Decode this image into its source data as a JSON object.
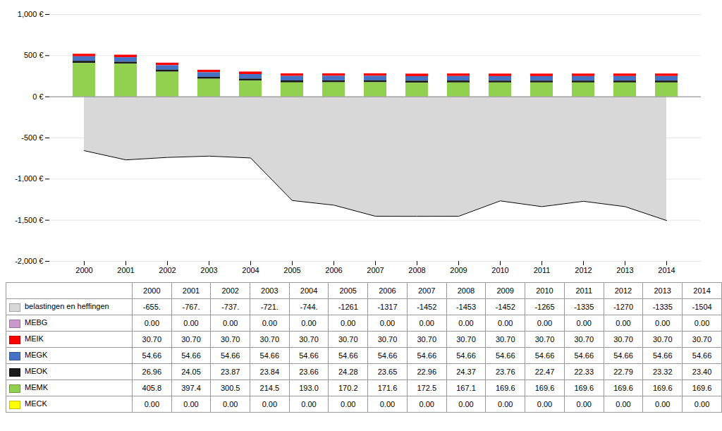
{
  "chart_data": {
    "type": "bar",
    "stacked": true,
    "grid": true,
    "categories": [
      2000,
      2001,
      2002,
      2003,
      2004,
      2005,
      2006,
      2007,
      2008,
      2009,
      2010,
      2011,
      2012,
      2013,
      2014
    ],
    "ylim": [
      -2000,
      1000
    ],
    "yticks": [
      {
        "value": -2000,
        "label": "-2,000 €"
      },
      {
        "value": -1500,
        "label": "-1,500 €"
      },
      {
        "value": -1000,
        "label": "-1,000 €"
      },
      {
        "value": -500,
        "label": "-500 €"
      },
      {
        "value": 0,
        "label": "0 €"
      },
      {
        "value": 500,
        "label": "500 €"
      },
      {
        "value": 1000,
        "label": "1,000 €"
      }
    ],
    "series": [
      {
        "name": "belastingen en heffingen",
        "type": "area",
        "color": "#d8d8d8",
        "values": [
          -655,
          -767,
          -737,
          -721,
          -744,
          -1261,
          -1317,
          -1452,
          -1453,
          -1452,
          -1265,
          -1335,
          -1270,
          -1335,
          -1504
        ],
        "value_labels": [
          "-655.",
          "-767.",
          "-737.",
          "-721.",
          "-744.",
          "-1261",
          "-1317",
          "-1452",
          "-1453",
          "-1452",
          "-1265",
          "-1335",
          "-1270",
          "-1335",
          "-1504"
        ]
      },
      {
        "name": "MEBG",
        "type": "bar",
        "color": "#cc99cc",
        "values": [
          0.0,
          0.0,
          0.0,
          0.0,
          0.0,
          0.0,
          0.0,
          0.0,
          0.0,
          0.0,
          0.0,
          0.0,
          0.0,
          0.0,
          0.0
        ],
        "value_labels": [
          "0.00",
          "0.00",
          "0.00",
          "0.00",
          "0.00",
          "0.00",
          "0.00",
          "0.00",
          "0.00",
          "0.00",
          "0.00",
          "0.00",
          "0.00",
          "0.00",
          "0.00"
        ]
      },
      {
        "name": "MEIK",
        "type": "bar",
        "color": "#ff0000",
        "values": [
          30.7,
          30.7,
          30.7,
          30.7,
          30.7,
          30.7,
          30.7,
          30.7,
          30.7,
          30.7,
          30.7,
          30.7,
          30.7,
          30.7,
          30.7
        ],
        "value_labels": [
          "30.70",
          "30.70",
          "30.70",
          "30.70",
          "30.70",
          "30.70",
          "30.70",
          "30.70",
          "30.70",
          "30.70",
          "30.70",
          "30.70",
          "30.70",
          "30.70",
          "30.70"
        ]
      },
      {
        "name": "MEGK",
        "type": "bar",
        "color": "#4472c4",
        "values": [
          54.66,
          54.66,
          54.66,
          54.66,
          54.66,
          54.66,
          54.66,
          54.66,
          54.66,
          54.66,
          54.66,
          54.66,
          54.66,
          54.66,
          54.66
        ],
        "value_labels": [
          "54.66",
          "54.66",
          "54.66",
          "54.66",
          "54.66",
          "54.66",
          "54.66",
          "54.66",
          "54.66",
          "54.66",
          "54.66",
          "54.66",
          "54.66",
          "54.66",
          "54.66"
        ]
      },
      {
        "name": "MEOK",
        "type": "bar",
        "color": "#1a1a1a",
        "values": [
          26.96,
          24.05,
          23.87,
          23.84,
          23.66,
          24.28,
          23.65,
          22.96,
          24.37,
          23.76,
          22.47,
          22.33,
          22.79,
          23.32,
          23.4
        ],
        "value_labels": [
          "26.96",
          "24.05",
          "23.87",
          "23.84",
          "23.66",
          "24.28",
          "23.65",
          "22.96",
          "24.37",
          "23.76",
          "22.47",
          "22.33",
          "22.79",
          "23.32",
          "23.40"
        ]
      },
      {
        "name": "MEMK",
        "type": "bar",
        "color": "#92d050",
        "values": [
          405.8,
          397.4,
          300.5,
          214.5,
          193.0,
          170.2,
          171.6,
          172.5,
          167.1,
          169.6,
          169.6,
          169.6,
          169.6,
          169.6,
          169.6
        ],
        "value_labels": [
          "405.8",
          "397.4",
          "300.5",
          "214.5",
          "193.0",
          "170.2",
          "171.6",
          "172.5",
          "167.1",
          "169.6",
          "169.6",
          "169.6",
          "169.6",
          "169.6",
          "169.6"
        ]
      },
      {
        "name": "MECK",
        "type": "bar",
        "color": "#ffff00",
        "values": [
          0.0,
          0.0,
          0.0,
          0.0,
          0.0,
          0.0,
          0.0,
          0.0,
          0.0,
          0.0,
          0.0,
          0.0,
          0.0,
          0.0,
          0.0
        ],
        "value_labels": [
          "0.00",
          "0.00",
          "0.00",
          "0.00",
          "0.00",
          "0.00",
          "0.00",
          "0.00",
          "0.00",
          "0.00",
          "0.00",
          "0.00",
          "0.00",
          "0.00",
          "0.00"
        ]
      }
    ]
  }
}
